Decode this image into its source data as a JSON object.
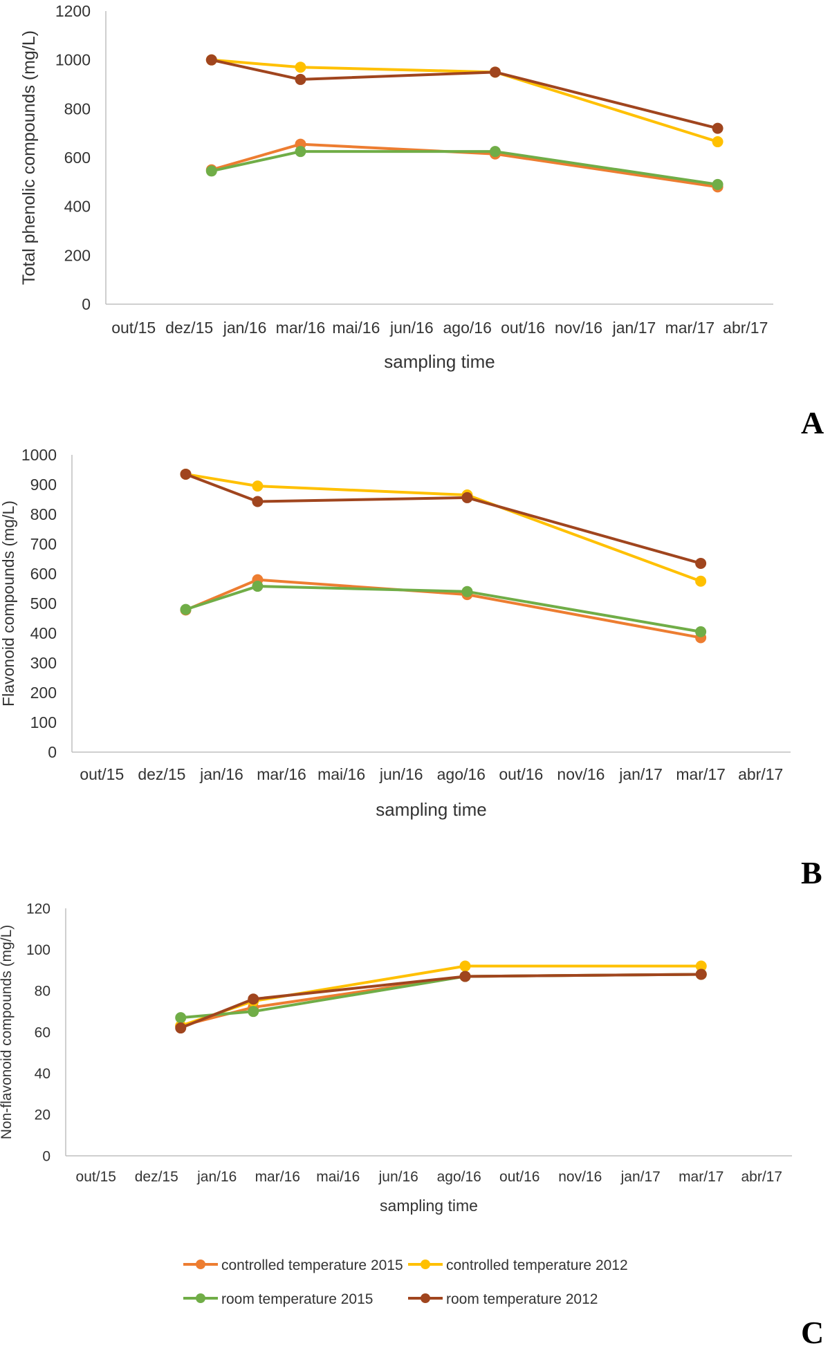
{
  "colors": {
    "controlled_2015": "#ED7D31",
    "controlled_2012": "#FFC000",
    "room_2015": "#70AD47",
    "room_2012": "#A0451E",
    "axis": "#BFBFBF"
  },
  "legend": {
    "controlled_2015": "controlled temperature 2015",
    "controlled_2012": "controlled temperature  2012",
    "room_2015": "room temperature 2015",
    "room_2012": "room temperature  2012"
  },
  "chart_data": [
    {
      "type": "line",
      "panel_label": "A",
      "xlabel": "sampling time",
      "ylabel": "Total phenolic compounds (mg/L)",
      "ylim": [
        0,
        1200
      ],
      "yticks": [
        0,
        200,
        400,
        600,
        800,
        1000,
        1200
      ],
      "x_ticks": [
        "out/15",
        "dez/15",
        "jan/16",
        "mar/16",
        "mai/16",
        "jun/16",
        "ago/16",
        "out/16",
        "nov/16",
        "jan/17",
        "mar/17",
        "abr/17"
      ],
      "x_positions": [
        1.4,
        3.0,
        6.5,
        10.5
      ],
      "series": [
        {
          "name": "controlled temperature 2015",
          "key": "controlled_2015",
          "values": [
            550,
            655,
            615,
            480
          ]
        },
        {
          "name": "controlled temperature 2012",
          "key": "controlled_2012",
          "values": [
            1000,
            970,
            950,
            665
          ]
        },
        {
          "name": "room temperature 2015",
          "key": "room_2015",
          "values": [
            545,
            625,
            625,
            490
          ]
        },
        {
          "name": "room temperature 2012",
          "key": "room_2012",
          "values": [
            1000,
            920,
            950,
            720
          ]
        }
      ]
    },
    {
      "type": "line",
      "panel_label": "B",
      "xlabel": "sampling time",
      "ylabel": "Flavonoid compounds (mg/L)",
      "ylim": [
        0,
        1000
      ],
      "yticks": [
        0,
        100,
        200,
        300,
        400,
        500,
        600,
        700,
        800,
        900,
        1000
      ],
      "x_ticks": [
        "out/15",
        "dez/15",
        "jan/16",
        "mar/16",
        "mai/16",
        "jun/16",
        "ago/16",
        "out/16",
        "nov/16",
        "jan/17",
        "mar/17",
        "abr/17"
      ],
      "x_positions": [
        1.4,
        2.6,
        6.1,
        10.0
      ],
      "series": [
        {
          "name": "controlled temperature 2015",
          "key": "controlled_2015",
          "values": [
            478,
            580,
            530,
            385
          ]
        },
        {
          "name": "controlled temperature 2012",
          "key": "controlled_2012",
          "values": [
            935,
            895,
            865,
            575
          ]
        },
        {
          "name": "room temperature 2015",
          "key": "room_2015",
          "values": [
            480,
            558,
            540,
            405
          ]
        },
        {
          "name": "room temperature 2012",
          "key": "room_2012",
          "values": [
            935,
            843,
            856,
            635
          ]
        }
      ]
    },
    {
      "type": "line",
      "panel_label": "C",
      "xlabel": "sampling time",
      "ylabel": "Non-flavonoid compounds (mg/L)",
      "ylim": [
        0,
        120
      ],
      "yticks": [
        0,
        20,
        40,
        60,
        80,
        100,
        120
      ],
      "x_ticks": [
        "out/15",
        "dez/15",
        "jan/16",
        "mar/16",
        "mai/16",
        "jun/16",
        "ago/16",
        "out/16",
        "nov/16",
        "jan/17",
        "mar/17",
        "abr/17"
      ],
      "x_positions": [
        1.4,
        2.6,
        6.1,
        10.0
      ],
      "series": [
        {
          "name": "controlled temperature 2015",
          "key": "controlled_2015",
          "values": [
            63,
            72,
            87,
            88
          ]
        },
        {
          "name": "controlled temperature 2012",
          "key": "controlled_2012",
          "values": [
            63,
            75,
            92,
            92
          ]
        },
        {
          "name": "room temperature 2015",
          "key": "room_2015",
          "values": [
            67,
            70,
            87,
            88
          ]
        },
        {
          "name": "room temperature 2012",
          "key": "room_2012",
          "values": [
            62,
            76,
            87,
            88
          ]
        }
      ]
    }
  ]
}
